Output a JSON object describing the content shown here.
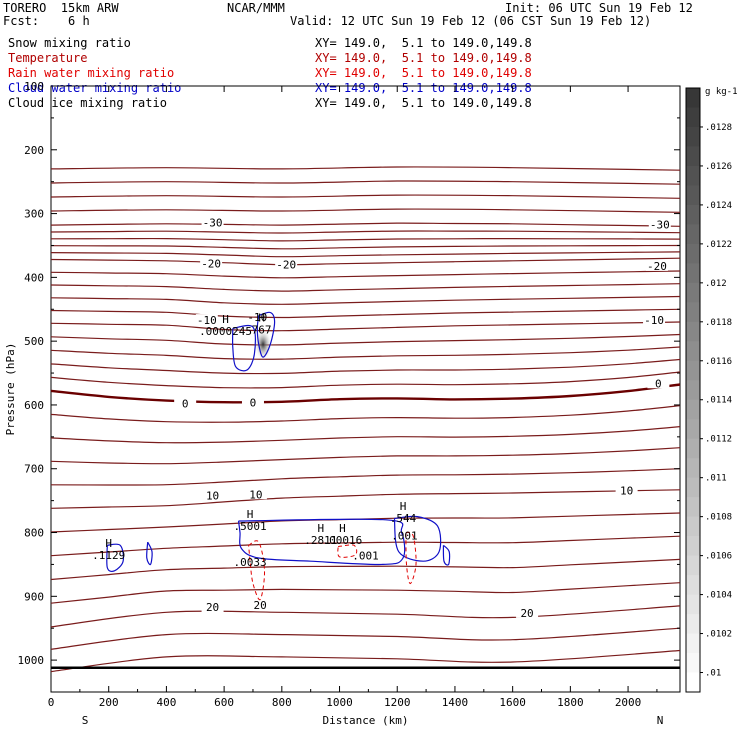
{
  "header": {
    "model": "TORERO  15km ARW",
    "center": "NCAR/MMM",
    "init": "Init: 06 UTC Sun 19 Feb 12",
    "fcst": "Fcst:    6 h",
    "valid": "Valid: 12 UTC Sun 19 Feb 12 (06 CST Sun 19 Feb 12)"
  },
  "legend": [
    {
      "name": "Snow mixing ratio",
      "xy": "XY= 149.0,  5.1 to 149.0,149.8",
      "color": "#000000"
    },
    {
      "name": "Temperature",
      "xy": "XY= 149.0,  5.1 to 149.0,149.8",
      "color": "#b00000"
    },
    {
      "name": "Rain water mixing ratio",
      "xy": "XY= 149.0,  5.1 to 149.0,149.8",
      "color": "#e00000"
    },
    {
      "name": "Cloud water mixing ratio",
      "xy": "XY= 149.0,  5.1 to 149.0,149.8",
      "color": "#0000c8"
    },
    {
      "name": "Cloud ice mixing ratio",
      "xy": "XY= 149.0,  5.1 to 149.0,149.8",
      "color": "#000000"
    }
  ],
  "chart_data": {
    "type": "line",
    "xlabel": "Distance (km)",
    "ylabel": "Pressure (hPa)",
    "xlim": [
      0,
      2180
    ],
    "ylim": [
      1050,
      100
    ],
    "x_ticks": [
      "0",
      "200",
      "400",
      "600",
      "800",
      "1000",
      "1200",
      "1400",
      "1600",
      "1800",
      "2000"
    ],
    "x_tick_values": [
      0,
      200,
      400,
      600,
      800,
      1000,
      1200,
      1400,
      1600,
      1800,
      2000
    ],
    "y_ticks": [
      "200",
      "300",
      "400",
      "500",
      "600",
      "700",
      "800",
      "900",
      "1000"
    ],
    "y_tick_values": [
      200,
      300,
      400,
      500,
      600,
      700,
      800,
      900,
      1000
    ],
    "ends": {
      "left": "S",
      "right": "N"
    },
    "temperature_contours": [
      {
        "level": -30,
        "label": "-30",
        "x": [
          0,
          400,
          800,
          1200,
          1600,
          2180
        ],
        "p": [
          318,
          316,
          318,
          315,
          316,
          320
        ]
      },
      {
        "level": -20,
        "label": "-20",
        "x": [
          0,
          400,
          800,
          1200,
          1600,
          2180
        ],
        "p": [
          372,
          374,
          380,
          377,
          374,
          370
        ]
      },
      {
        "level": -10,
        "label": "-10",
        "x": [
          0,
          400,
          700,
          1000,
          1400,
          2180
        ],
        "p": [
          472,
          475,
          485,
          481,
          476,
          470
        ]
      },
      {
        "level": 0,
        "label": "0",
        "x": [
          0,
          300,
          700,
          1100,
          1500,
          1900,
          2180
        ],
        "p": [
          578,
          592,
          597,
          589,
          592,
          584,
          568
        ]
      },
      {
        "level": 10,
        "label": "10",
        "x": [
          0,
          400,
          800,
          1200,
          1600,
          2180
        ],
        "p": [
          762,
          758,
          746,
          740,
          738,
          733
        ]
      },
      {
        "level": 20,
        "label": "20",
        "x": [
          0,
          400,
          800,
          1200,
          1600,
          2180
        ],
        "p": [
          948,
          925,
          925,
          928,
          933,
          915
        ]
      }
    ],
    "contour_labels": [
      {
        "text": "-30",
        "x": 560,
        "p": 314
      },
      {
        "text": "-30",
        "x": 2110,
        "p": 317
      },
      {
        "text": "-20",
        "x": 555,
        "p": 378
      },
      {
        "text": "-20",
        "x": 815,
        "p": 380
      },
      {
        "text": "-20",
        "x": 2100,
        "p": 382
      },
      {
        "text": "-10",
        "x": 540,
        "p": 467
      },
      {
        "text": "-10",
        "x": 2090,
        "p": 467
      },
      {
        "text": "0",
        "x": 465,
        "p": 598
      },
      {
        "text": "0",
        "x": 700,
        "p": 596
      },
      {
        "text": "0",
        "x": 2105,
        "p": 566
      },
      {
        "text": "10",
        "x": 560,
        "p": 742
      },
      {
        "text": "10",
        "x": 710,
        "p": 740
      },
      {
        "text": "10",
        "x": 1995,
        "p": 734
      },
      {
        "text": "20",
        "x": 560,
        "p": 917
      },
      {
        "text": "20",
        "x": 725,
        "p": 914
      },
      {
        "text": "20",
        "x": 1650,
        "p": 926
      }
    ],
    "max_labels": [
      {
        "marker": "H",
        "value": ".0000245",
        "x": 605,
        "p": 487,
        "color": "#000000"
      },
      {
        "marker": "-10",
        "value": "",
        "x": 715,
        "p": 484,
        "color": "#000000"
      },
      {
        "marker": "H",
        "value": "767",
        "x": 730,
        "p": 485,
        "color": "#0000c8"
      },
      {
        "marker": "H",
        "value": ".1129",
        "x": 200,
        "p": 838,
        "color": "#0000c8"
      },
      {
        "marker": "H",
        "value": ".5001",
        "x": 690,
        "p": 793,
        "color": "#0000c8"
      },
      {
        "marker": "",
        "value": ".0033",
        "x": 690,
        "p": 849,
        "color": "#e00000"
      },
      {
        "marker": "H",
        "value": ".2811",
        "x": 935,
        "p": 815,
        "color": "#0000c8"
      },
      {
        "marker": "H",
        "value": ".00016",
        "x": 1010,
        "p": 815,
        "color": "#e00000"
      },
      {
        "marker": "H",
        "value": ".544",
        "x": 1220,
        "p": 780,
        "color": "#0000c8"
      },
      {
        "marker": "",
        "value": ".001",
        "x": 1225,
        "p": 808,
        "color": "#0000c8"
      },
      {
        "marker": "",
        "value": ".001",
        "x": 1090,
        "p": 839,
        "color": "#0000c8"
      }
    ],
    "colorbar": {
      "unit": "g kg-1",
      "ticks": [
        ".0128",
        ".0126",
        ".0124",
        ".0122",
        ".012",
        ".0118",
        ".0116",
        ".0114",
        ".0112",
        ".011",
        ".0108",
        ".0106",
        ".0104",
        ".0102",
        ".01"
      ],
      "tick_values": [
        0.0128,
        0.0126,
        0.0124,
        0.0122,
        0.012,
        0.0118,
        0.0116,
        0.0114,
        0.0112,
        0.011,
        0.0108,
        0.0106,
        0.0104,
        0.0102,
        0.01
      ],
      "max": 0.013,
      "min": 0.0099
    },
    "colors": {
      "temperature": "#7a1c1c",
      "temperature_zero": "#6a0000",
      "cloud_water": "#1010c8",
      "rain": "#e00000",
      "ground": "#000000"
    }
  }
}
